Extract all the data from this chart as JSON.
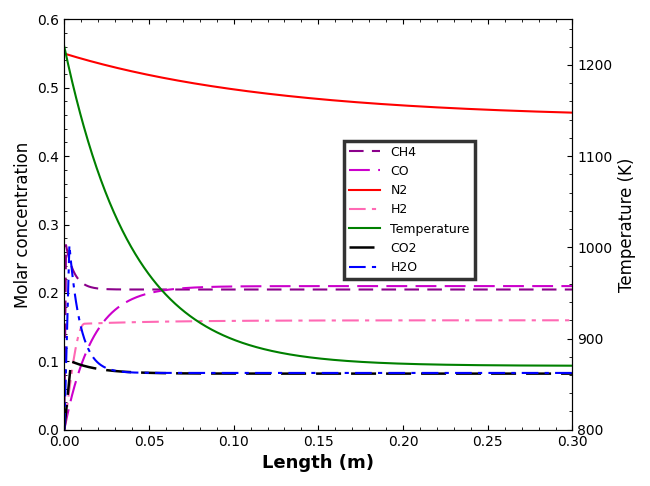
{
  "xlabel": "Length (m)",
  "ylabel_left": "Molar concentration",
  "ylabel_right": "Temperature (K)",
  "xlim": [
    0,
    0.3
  ],
  "ylim_left": [
    0.0,
    0.6
  ],
  "ylim_right": [
    800,
    1250
  ],
  "xticks": [
    0.0,
    0.05,
    0.1,
    0.15,
    0.2,
    0.25,
    0.3
  ],
  "yticks_left": [
    0.0,
    0.1,
    0.2,
    0.3,
    0.4,
    0.5,
    0.6
  ],
  "yticks_right": [
    800,
    900,
    1000,
    1100,
    1200
  ],
  "legend_order": [
    "CH4",
    "CO",
    "N2",
    "H2",
    "Temperature",
    "CO2",
    "H2O"
  ]
}
